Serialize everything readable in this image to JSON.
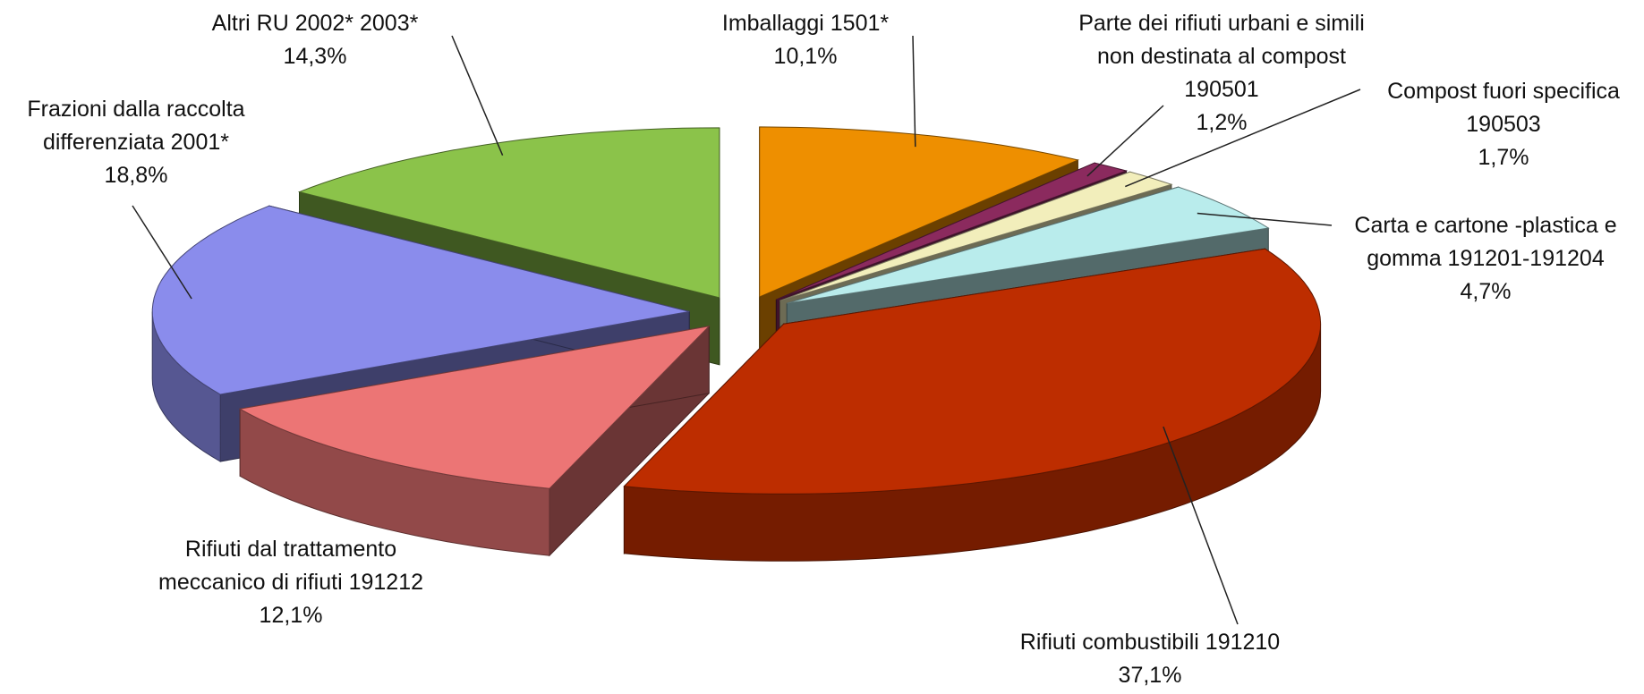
{
  "chart_data": {
    "type": "pie3d",
    "categories": [
      "Imballaggi 1501*",
      "Parte dei rifiuti urbani e simili non destinata al compost  190501",
      "Compost fuori specifica 190503",
      "Carta e cartone -plastica e gomma 191201-191204",
      "Rifiuti combustibili 191210",
      "Rifiuti dal trattamento meccanico di rifiuti 191212",
      "Frazioni dalla raccolta differenziata 2001*",
      "Altri RU 2002* 2003*"
    ],
    "values": [
      10.1,
      1.2,
      1.7,
      4.7,
      37.1,
      12.1,
      18.8,
      14.3
    ],
    "value_labels": [
      "10,1%",
      "1,2%",
      "1,7%",
      "4,7%",
      "37,1%",
      "12,1%",
      "18,8%",
      "14,3%"
    ],
    "colors": [
      "#ee8f00",
      "#8b2a5e",
      "#f2eebb",
      "#b9ecec",
      "#bd2d00",
      "#ec7575",
      "#8a8cec",
      "#8bc34a"
    ]
  }
}
